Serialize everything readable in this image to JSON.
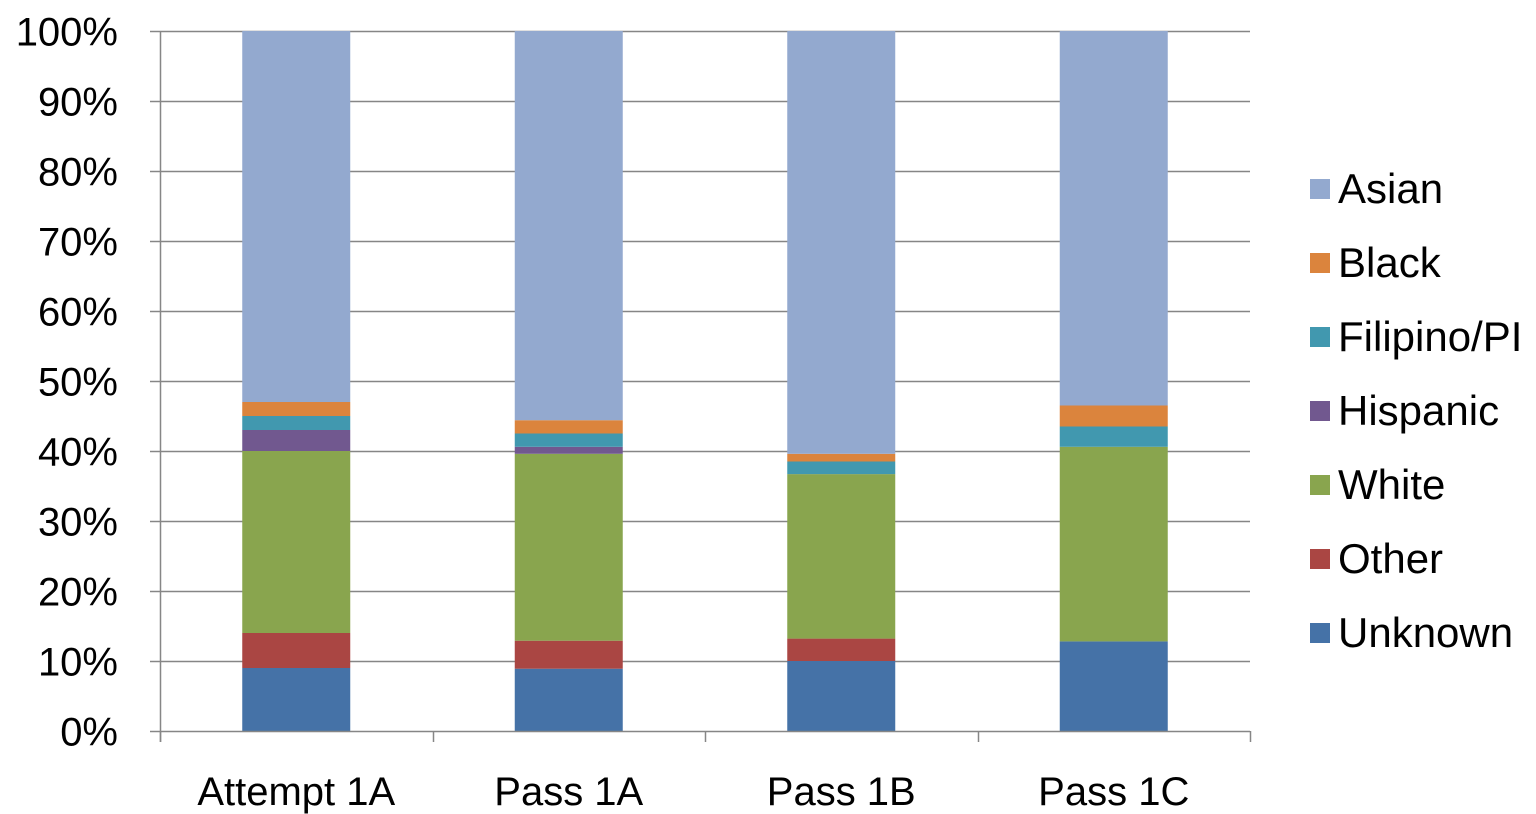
{
  "chart_data": {
    "type": "bar",
    "stacked": true,
    "percent": true,
    "categories": [
      "Attempt 1A",
      "Pass 1A",
      "Pass 1B",
      "Pass 1C"
    ],
    "series": [
      {
        "name": "Unknown",
        "color": "#4572A7",
        "values": [
          9.0,
          8.9,
          10.0,
          12.8
        ]
      },
      {
        "name": "Other",
        "color": "#AA4643",
        "values": [
          5.0,
          4.0,
          3.2,
          0.0
        ]
      },
      {
        "name": "White",
        "color": "#89A54E",
        "values": [
          26.0,
          26.7,
          23.5,
          27.8
        ]
      },
      {
        "name": "Hispanic",
        "color": "#71588F",
        "values": [
          3.0,
          1.0,
          0.0,
          0.0
        ]
      },
      {
        "name": "Filipino/PI",
        "color": "#4198AF",
        "values": [
          2.0,
          1.9,
          1.8,
          2.9
        ]
      },
      {
        "name": "Black",
        "color": "#DB843D",
        "values": [
          2.0,
          1.9,
          1.1,
          3.0
        ]
      },
      {
        "name": "Asian",
        "color": "#93A9CF",
        "values": [
          53.0,
          55.6,
          60.4,
          53.5
        ]
      }
    ],
    "y_ticks": [
      "0%",
      "10%",
      "20%",
      "30%",
      "40%",
      "50%",
      "60%",
      "70%",
      "80%",
      "90%",
      "100%"
    ],
    "ylim": [
      0,
      100
    ],
    "grid": true,
    "legend_position": "right",
    "legend_order": [
      "Asian",
      "Black",
      "Filipino/PI",
      "Hispanic",
      "White",
      "Other",
      "Unknown"
    ],
    "title": "",
    "xlabel": "",
    "ylabel": ""
  }
}
